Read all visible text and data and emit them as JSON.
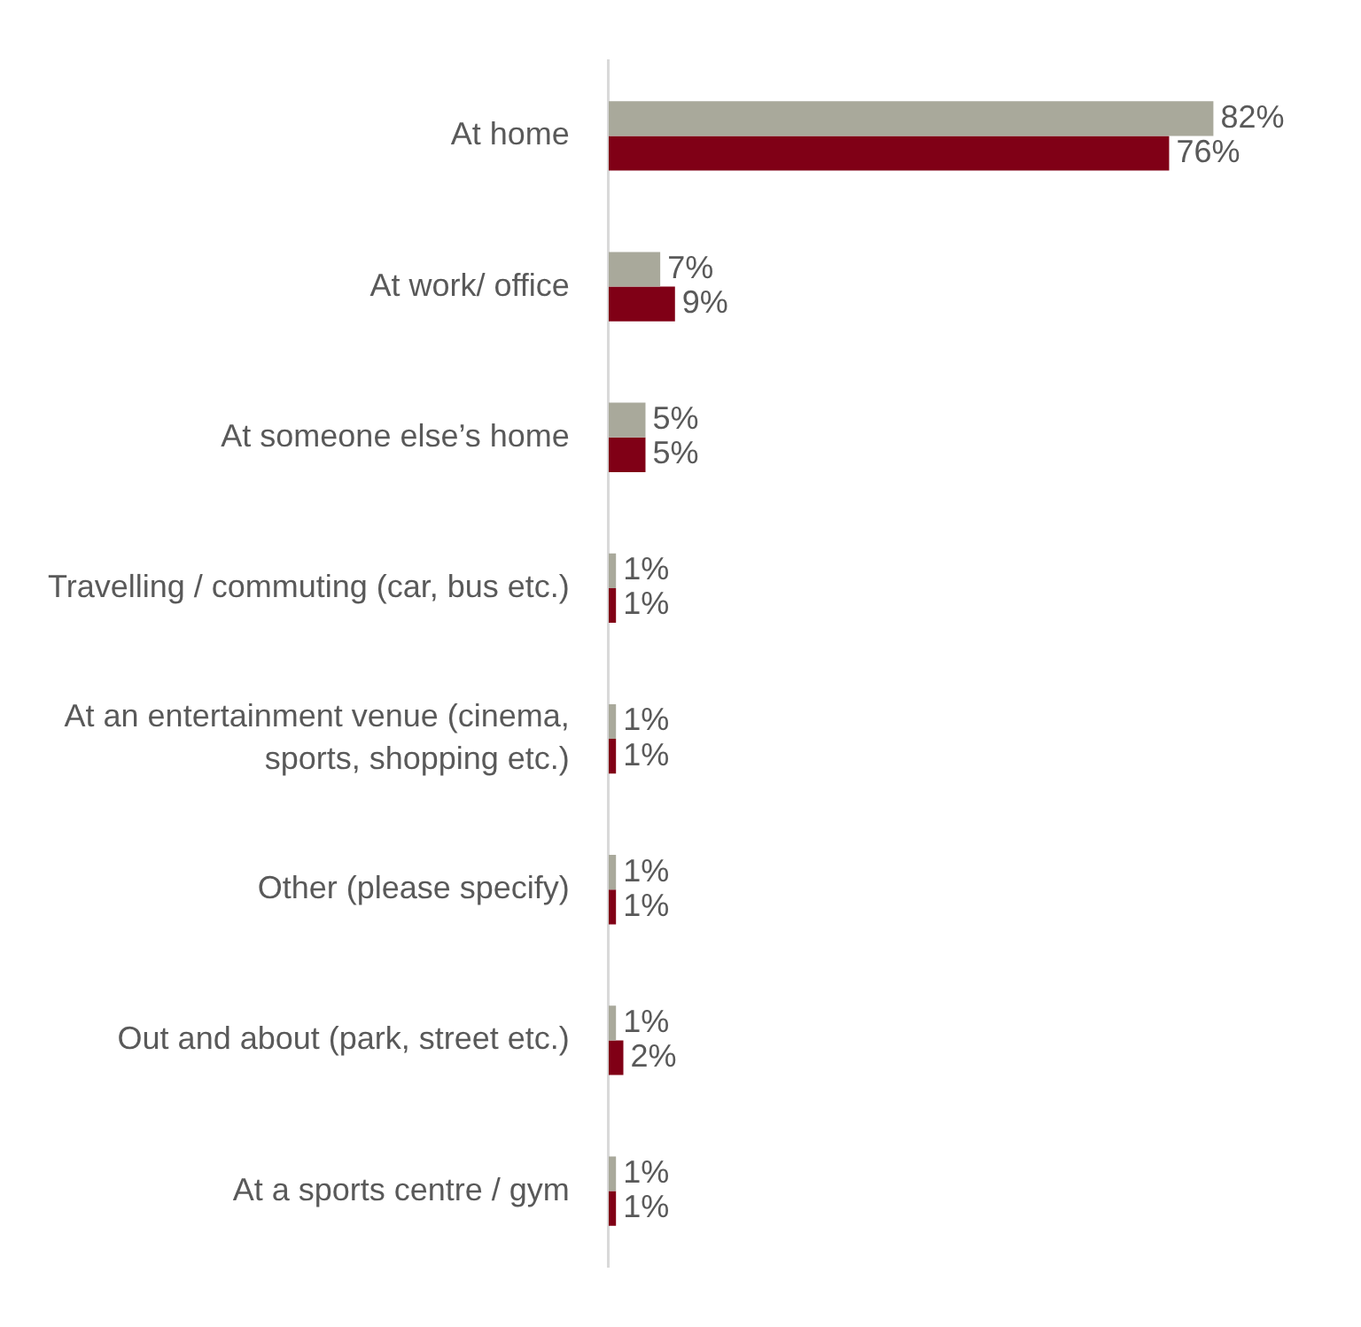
{
  "chart_data": {
    "type": "bar",
    "orientation": "horizontal",
    "categories": [
      "At home",
      "At work/ office",
      "At someone else’s home",
      "Travelling / commuting (car, bus etc.)",
      "At an entertainment venue (cinema, sports, shopping etc.)",
      "Other (please specify)",
      "Out and about (park, street etc.)",
      "At a sports centre / gym"
    ],
    "series": [
      {
        "color": "#a9a99b",
        "values": [
          82,
          7,
          5,
          1,
          1,
          1,
          1,
          1
        ],
        "value_labels": [
          "82%",
          "7%",
          "5%",
          "1%",
          "1%",
          "1%",
          "1%",
          "1%"
        ]
      },
      {
        "color": "#800016",
        "values": [
          76,
          9,
          5,
          1,
          1,
          1,
          2,
          1
        ],
        "value_labels": [
          "76%",
          "9%",
          "5%",
          "1%",
          "1%",
          "1%",
          "2%",
          "1%"
        ]
      }
    ],
    "tick_labels": "y",
    "legend": false
  }
}
